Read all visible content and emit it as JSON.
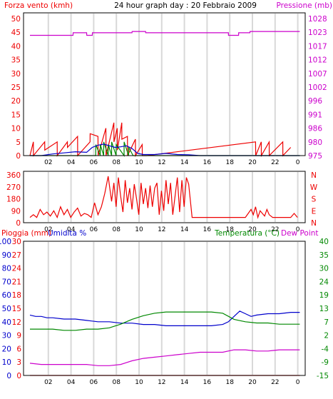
{
  "header": {
    "wind_label": "Forza vento (kmh)",
    "title": "24 hour graph day : 20 Febbraio 2009",
    "pressure_label": "Pressione (mb)"
  },
  "colors": {
    "red": "#ee0000",
    "blue": "#0000cc",
    "green": "#008800",
    "magenta": "#cc00cc",
    "grid": "#d8d8d8",
    "frame": "#000000"
  },
  "chart_data": [
    {
      "type": "line",
      "name": "wind-pressure",
      "x_ticks": [
        "02",
        "04",
        "06",
        "08",
        "10",
        "12",
        "14",
        "16",
        "18",
        "20",
        "22",
        "0"
      ],
      "y_left_ticks": [
        "50",
        "45",
        "40",
        "35",
        "30",
        "25",
        "20",
        "15",
        "10",
        "5",
        "0"
      ],
      "y_right_ticks": [
        "1028",
        "1023",
        "1017",
        "1012",
        "1007",
        "1002",
        "996",
        "991",
        "986",
        "980",
        "975"
      ],
      "ylim_left": [
        0,
        50
      ],
      "ylim_right": [
        975,
        1028
      ],
      "series": [
        {
          "color": "red",
          "axis": "left",
          "x": [
            0,
            0.3,
            0.31,
            1.3,
            1.31,
            2.4,
            2.41,
            3.3,
            3.31,
            4.2,
            4.21,
            5.3,
            5.31,
            6,
            6.01,
            6.7,
            6.71,
            7.4,
            7.41,
            7.7,
            7.71,
            8.1,
            8.11,
            8.6,
            8.61,
            9.3,
            9.31,
            9.9,
            9.91,
            10.3,
            10.31,
            19.9,
            19.91,
            20.4,
            20.41,
            21.1,
            21.11,
            22.3,
            22.31,
            23
          ],
          "y": [
            0,
            5,
            0,
            5,
            2,
            5,
            0,
            5,
            3,
            7,
            0,
            5,
            8,
            7,
            0,
            10,
            0,
            12,
            5,
            10,
            2,
            12,
            6,
            7,
            0,
            6,
            0,
            4,
            0,
            0,
            0,
            5,
            0,
            5,
            0,
            5,
            0,
            5,
            0,
            3
          ]
        },
        {
          "color": "green",
          "axis": "left",
          "x": [
            0,
            5.8,
            5.81,
            6.2,
            6.21,
            6.5,
            6.51,
            6.9,
            6.91,
            7.2,
            7.21,
            7.6,
            7.61,
            8.3,
            8.31,
            8.7,
            8.71,
            9.1,
            9.11,
            23.8
          ],
          "y": [
            0,
            0,
            4,
            0,
            4,
            0,
            5,
            0,
            4,
            0,
            5,
            0,
            4,
            0,
            5,
            0,
            3,
            0,
            0,
            0
          ]
        },
        {
          "color": "blue",
          "axis": "left",
          "x": [
            0,
            1,
            2,
            3,
            4,
            5,
            5.5,
            6,
            6.5,
            7,
            7.5,
            8,
            8.5,
            9,
            9.5,
            10,
            11,
            12,
            13,
            14,
            15,
            16,
            17,
            18,
            19,
            20,
            21,
            22,
            23.8
          ],
          "y": [
            0,
            0,
            0.6,
            1,
            1.4,
            1.2,
            3,
            3.8,
            4.2,
            3.6,
            3,
            3.2,
            3.6,
            2.6,
            0.8,
            0.4,
            0.4,
            0.8,
            0.4,
            0.3,
            0,
            0,
            0,
            0,
            0,
            0,
            0,
            0,
            0
          ]
        },
        {
          "color": "magenta",
          "axis": "right",
          "x": [
            0,
            3.8,
            3.81,
            5,
            5.01,
            5.5,
            5.51,
            9,
            9.01,
            10.2,
            10.21,
            17.5,
            17.51,
            18.4,
            18.41,
            19.4,
            19.41,
            21.4,
            21.41,
            23.8
          ],
          "y": [
            1021.5,
            1021.5,
            1022.5,
            1022.5,
            1021.5,
            1021.5,
            1022.5,
            1022.5,
            1023,
            1023,
            1022.5,
            1022.5,
            1021.5,
            1021.5,
            1022.5,
            1022.5,
            1023,
            1023,
            1023,
            1023
          ]
        }
      ]
    },
    {
      "type": "line",
      "name": "wind-direction",
      "x_ticks": [
        "02",
        "04",
        "06",
        "08",
        "10",
        "12",
        "14",
        "16",
        "18",
        "20",
        "22",
        "0"
      ],
      "y_left_ticks": [
        "360",
        "270",
        "180",
        "90",
        "0"
      ],
      "y_right_ticks": [
        "N",
        "W",
        "S",
        "E",
        "N"
      ],
      "ylim_left": [
        0,
        360
      ],
      "series": [
        {
          "color": "red",
          "axis": "left",
          "x": [
            0,
            0.3,
            0.6,
            0.9,
            1.2,
            1.5,
            1.8,
            2.1,
            2.4,
            2.7,
            3,
            3.3,
            3.6,
            3.9,
            4.2,
            4.5,
            4.8,
            5.1,
            5.4,
            5.7,
            6,
            6.3,
            6.6,
            6.9,
            7.2,
            7.4,
            7.6,
            7.8,
            8,
            8.2,
            8.4,
            8.6,
            8.8,
            9,
            9.2,
            9.4,
            9.6,
            9.8,
            10,
            10.2,
            10.4,
            10.6,
            10.8,
            11,
            11.2,
            11.4,
            11.6,
            11.8,
            12,
            12.2,
            12.4,
            12.6,
            12.8,
            13,
            13.2,
            13.4,
            13.6,
            13.8,
            14,
            14.3,
            15,
            16,
            17,
            18,
            19,
            19.5,
            19.7,
            19.9,
            20.1,
            20.3,
            20.5,
            20.7,
            20.9,
            21.1,
            21.4,
            22,
            22.5,
            23,
            23.3,
            23.6
          ],
          "y": [
            40,
            60,
            40,
            100,
            60,
            80,
            50,
            90,
            40,
            120,
            60,
            100,
            40,
            80,
            110,
            50,
            70,
            60,
            40,
            150,
            60,
            120,
            220,
            350,
            160,
            300,
            120,
            340,
            200,
            80,
            320,
            150,
            260,
            100,
            290,
            180,
            60,
            300,
            140,
            260,
            110,
            280,
            120,
            260,
            300,
            60,
            240,
            90,
            320,
            140,
            300,
            60,
            200,
            340,
            80,
            320,
            120,
            340,
            290,
            40,
            40,
            40,
            40,
            40,
            40,
            100,
            60,
            120,
            40,
            90,
            70,
            50,
            100,
            60,
            40,
            40,
            40,
            40,
            70,
            40
          ]
        }
      ]
    },
    {
      "type": "line",
      "name": "rain-humidity-temperature",
      "legend": {
        "rain": "Pioggia (mm)",
        "humidity": "Umidita %",
        "temperature": "Temperatura (°C)",
        "dew_point": "Dew Point"
      },
      "x_ticks": [
        "02",
        "04",
        "06",
        "08",
        "10",
        "12",
        "14",
        "16",
        "18",
        "20",
        "22",
        "0"
      ],
      "y_left1_ticks": [
        "30",
        "27",
        "24",
        "21",
        "18",
        "15",
        "12",
        "9",
        "6",
        "3",
        "0"
      ],
      "y_left2_ticks": [
        "100",
        "90",
        "80",
        "70",
        "60",
        "50",
        "40",
        "30",
        "20",
        "10",
        "0"
      ],
      "y_right_ticks": [
        "40",
        "35",
        "30",
        "24",
        "19",
        "13",
        "7",
        "2",
        "-4",
        "-9",
        "-15"
      ],
      "ylim_humidity": [
        0,
        100
      ],
      "ylim_temperature": [
        -15,
        40
      ],
      "series": [
        {
          "color": "blue",
          "axis": "humidity",
          "x": [
            0,
            0.5,
            1,
            1.5,
            2,
            3,
            4,
            5,
            6,
            7,
            8,
            9,
            10,
            11,
            12,
            13,
            14,
            15,
            16,
            17,
            17.5,
            18,
            18.5,
            19,
            19.5,
            20,
            21,
            22,
            23,
            23.8
          ],
          "y": [
            45,
            44,
            44,
            43,
            43,
            42,
            42,
            41,
            40,
            40,
            39,
            39,
            38,
            38,
            37,
            37,
            37,
            37,
            37,
            38,
            40,
            44,
            48,
            46,
            44,
            45,
            46,
            46,
            47,
            47
          ]
        },
        {
          "color": "green",
          "axis": "temperature",
          "x": [
            0,
            1,
            2,
            3,
            4,
            5,
            6,
            7,
            8,
            9,
            10,
            11,
            12,
            13,
            14,
            15,
            16,
            17,
            18,
            19,
            20,
            21,
            22,
            23,
            23.8
          ],
          "y": [
            4,
            4,
            4,
            3.5,
            3.5,
            4,
            4,
            4.5,
            6,
            8,
            9.5,
            10.5,
            11,
            11,
            11,
            11,
            11,
            10.5,
            8,
            7,
            6.5,
            6.5,
            6,
            6,
            6
          ]
        },
        {
          "color": "magenta",
          "axis": "temperature",
          "x": [
            0,
            1,
            2,
            3,
            4,
            5,
            6,
            7,
            8,
            9,
            10,
            11,
            12,
            13,
            14,
            15,
            16,
            17,
            18,
            19,
            20,
            21,
            22,
            23,
            23.8
          ],
          "y": [
            -10,
            -10.5,
            -10.5,
            -10.5,
            -10.5,
            -10.5,
            -11,
            -11,
            -10.5,
            -9,
            -8,
            -7.5,
            -7,
            -6.5,
            -6,
            -5.5,
            -5.5,
            -5.5,
            -4.5,
            -4.5,
            -5,
            -5,
            -4.5,
            -4.5,
            -4.5
          ]
        },
        {
          "color": "red",
          "axis": "rain",
          "x": [
            0,
            23.8
          ],
          "y": [
            0,
            0
          ]
        }
      ]
    }
  ]
}
